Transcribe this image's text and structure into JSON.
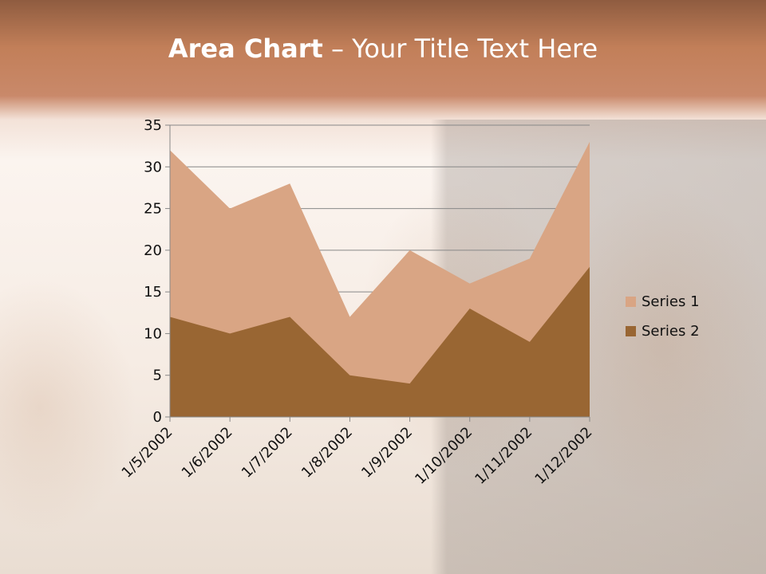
{
  "slide": {
    "title_bold": "Area Chart",
    "title_rest": " – Your Title Text Here"
  },
  "chart_data": {
    "type": "area",
    "categories": [
      "1/5/2002",
      "1/6/2002",
      "1/7/2002",
      "1/8/2002",
      "1/9/2002",
      "1/10/2002",
      "1/11/2002",
      "1/12/2002"
    ],
    "series": [
      {
        "name": "Series 1",
        "values": [
          32,
          25,
          28,
          12,
          20,
          16,
          19,
          33
        ],
        "color": "#d9a584"
      },
      {
        "name": "Series 2",
        "values": [
          12,
          10,
          12,
          5,
          4,
          13,
          9,
          18
        ],
        "color": "#996633"
      }
    ],
    "ylim": [
      0,
      35
    ],
    "yticks": [
      0,
      5,
      10,
      15,
      20,
      25,
      30,
      35
    ],
    "grid": true,
    "legend": "right",
    "stacked": false
  }
}
